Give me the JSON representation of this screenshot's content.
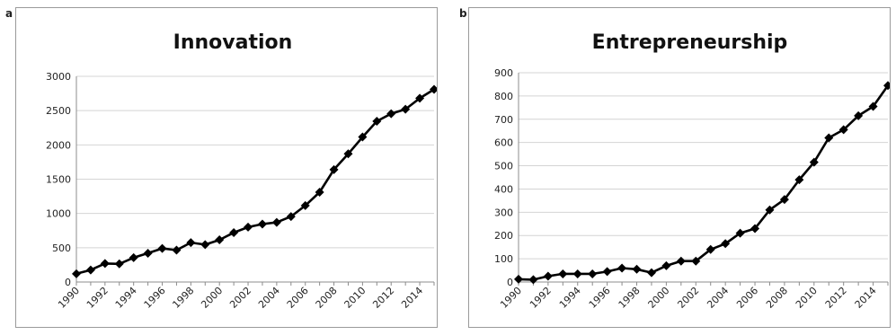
{
  "panels": [
    {
      "letter": "a"
    },
    {
      "letter": "b"
    }
  ],
  "chart_data": [
    {
      "type": "line",
      "title": "Innovation",
      "xlabel": "",
      "ylabel": "",
      "x": [
        1990,
        1991,
        1992,
        1993,
        1994,
        1995,
        1996,
        1997,
        1998,
        1999,
        2000,
        2001,
        2002,
        2003,
        2004,
        2005,
        2006,
        2007,
        2008,
        2009,
        2010,
        2011,
        2012,
        2013,
        2014,
        2015
      ],
      "xticks": [
        "1990",
        "1992",
        "1994",
        "1996",
        "1998",
        "2000",
        "2002",
        "2004",
        "2006",
        "2008",
        "2010",
        "2012",
        "2014"
      ],
      "yticks": [
        "0",
        "500",
        "1000",
        "1500",
        "2000",
        "2500",
        "3000"
      ],
      "ylim": [
        0,
        3000
      ],
      "series": [
        {
          "values": [
            120,
            175,
            270,
            265,
            355,
            420,
            490,
            465,
            575,
            545,
            615,
            720,
            800,
            845,
            870,
            955,
            1115,
            1310,
            1640,
            1870,
            2115,
            2345,
            2455,
            2520,
            2680,
            2810
          ],
          "color": "#000000",
          "marker": "diamond"
        }
      ],
      "grid": true,
      "legend": "none"
    },
    {
      "type": "line",
      "title": "Entrepreneurship",
      "xlabel": "",
      "ylabel": "",
      "x": [
        1990,
        1991,
        1992,
        1993,
        1994,
        1995,
        1996,
        1997,
        1998,
        1999,
        2000,
        2001,
        2002,
        2003,
        2004,
        2005,
        2006,
        2007,
        2008,
        2009,
        2010,
        2011,
        2012,
        2013,
        2014,
        2015
      ],
      "xticks": [
        "1990",
        "1992",
        "1994",
        "1996",
        "1998",
        "2000",
        "2002",
        "2004",
        "2006",
        "2008",
        "2010",
        "2012",
        "2014"
      ],
      "yticks": [
        "0",
        "100",
        "200",
        "300",
        "400",
        "500",
        "600",
        "700",
        "800",
        "900"
      ],
      "ylim": [
        0,
        900
      ],
      "series": [
        {
          "values": [
            12,
            10,
            25,
            35,
            35,
            35,
            45,
            60,
            55,
            40,
            70,
            90,
            90,
            140,
            165,
            210,
            230,
            310,
            355,
            440,
            515,
            620,
            655,
            715,
            755,
            845
          ],
          "color": "#000000",
          "marker": "diamond"
        }
      ],
      "grid": true,
      "legend": "none"
    }
  ]
}
